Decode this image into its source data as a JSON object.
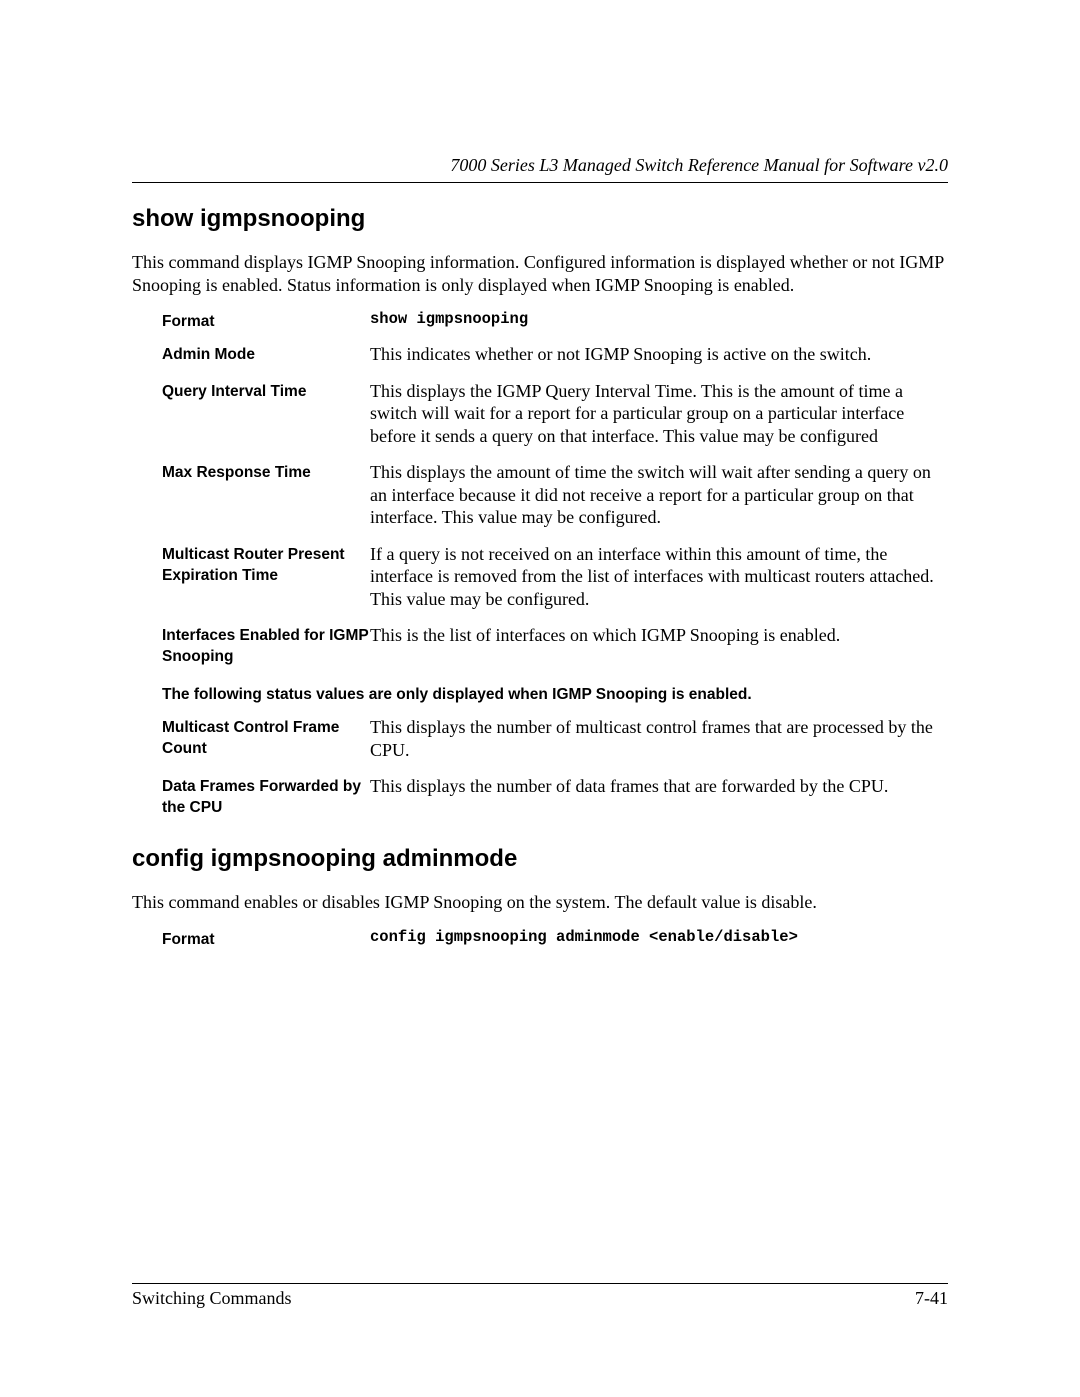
{
  "header": {
    "running_title": "7000 Series L3 Managed Switch Reference Manual for Software v2.0"
  },
  "section1": {
    "heading": "show igmpsnooping",
    "intro": "This command displays IGMP Snooping information. Configured information is displayed whether or not IGMP Snooping is enabled. Status information is only displayed when IGMP Snooping is enabled.",
    "rows": {
      "format": {
        "label": "Format",
        "value": "show igmpsnooping"
      },
      "admin_mode": {
        "label": "Admin Mode",
        "value": "This indicates whether or not IGMP Snooping is active on the switch."
      },
      "query_interval": {
        "label": "Query Interval Time",
        "value": "This displays the IGMP Query Interval Time. This is the amount of time a switch will wait for a report for a particular group on a particular interface before it sends a query on that interface. This value may be configured"
      },
      "max_response": {
        "label": "Max Response Time",
        "value": "This displays the amount of time the switch will wait after sending a query on an interface because it did not receive a report for a particular group on that interface. This value may be configured."
      },
      "mcast_router": {
        "label": "Multicast Router Present Expiration Time",
        "value": "If a query is not received on an interface within this amount of time, the interface is removed from the list of interfaces with multicast routers attached. This value may be configured."
      },
      "interfaces_enabled": {
        "label": "Interfaces Enabled for IGMP Snooping",
        "value": "This is the list of interfaces on which IGMP Snooping is enabled."
      }
    },
    "status_note": "The following status values are only displayed when IGMP Snooping is enabled.",
    "status_rows": {
      "mcast_ctrl": {
        "label": "Multicast Control Frame Count",
        "value": "This displays the number of multicast control frames that are processed by the CPU."
      },
      "data_frames": {
        "label": "Data Frames Forwarded by the CPU",
        "value": "This displays the number of data frames that are forwarded by the CPU."
      }
    }
  },
  "section2": {
    "heading": "config igmpsnooping adminmode",
    "intro": "This command enables or disables IGMP Snooping on the system. The default value is disable.",
    "rows": {
      "format": {
        "label": "Format",
        "value": "config igmpsnooping adminmode <enable/disable>"
      }
    }
  },
  "footer": {
    "left": "Switching Commands",
    "right": "7-41"
  }
}
